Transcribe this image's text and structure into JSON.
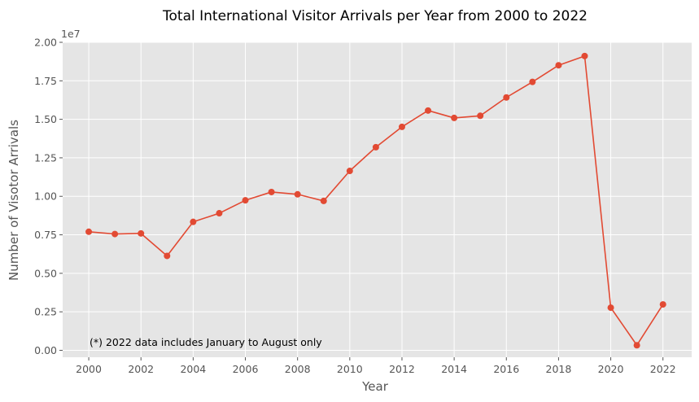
{
  "chart_data": {
    "type": "line",
    "title": "Total International Visitor Arrivals per Year from 2000 to 2022",
    "xlabel": "Year",
    "ylabel": "Number of Visotor Arrivals",
    "y_exponent_label": "1e7",
    "annotation": "(*) 2022 data includes January to August only",
    "x": [
      2000,
      2001,
      2002,
      2003,
      2004,
      2005,
      2006,
      2007,
      2008,
      2009,
      2010,
      2011,
      2012,
      2013,
      2014,
      2015,
      2016,
      2017,
      2018,
      2019,
      2020,
      2021,
      2022
    ],
    "series": [
      {
        "values": [
          7700000,
          7550000,
          7590000,
          6130000,
          8340000,
          8900000,
          9740000,
          10280000,
          10130000,
          9700000,
          11650000,
          13190000,
          14510000,
          15570000,
          15090000,
          15230000,
          16420000,
          17430000,
          18510000,
          19110000,
          2770000,
          330000,
          2980000
        ]
      }
    ],
    "x_ticks": [
      2000,
      2002,
      2004,
      2006,
      2008,
      2010,
      2012,
      2014,
      2016,
      2018,
      2020,
      2022
    ],
    "y_ticks": [
      0,
      2500000,
      5000000,
      7500000,
      10000000,
      12500000,
      15000000,
      17500000,
      20000000
    ],
    "y_tick_labels": [
      "0.00",
      "0.25",
      "0.50",
      "0.75",
      "1.00",
      "1.25",
      "1.50",
      "1.75",
      "2.00"
    ],
    "xlim": [
      1999.0,
      2023.1
    ],
    "ylim": [
      -450000,
      20000000
    ],
    "grid": true,
    "colors": {
      "line": "#E24A33",
      "plot_background": "#E5E5E5",
      "grid": "#FFFFFF",
      "text": "#555555"
    }
  }
}
